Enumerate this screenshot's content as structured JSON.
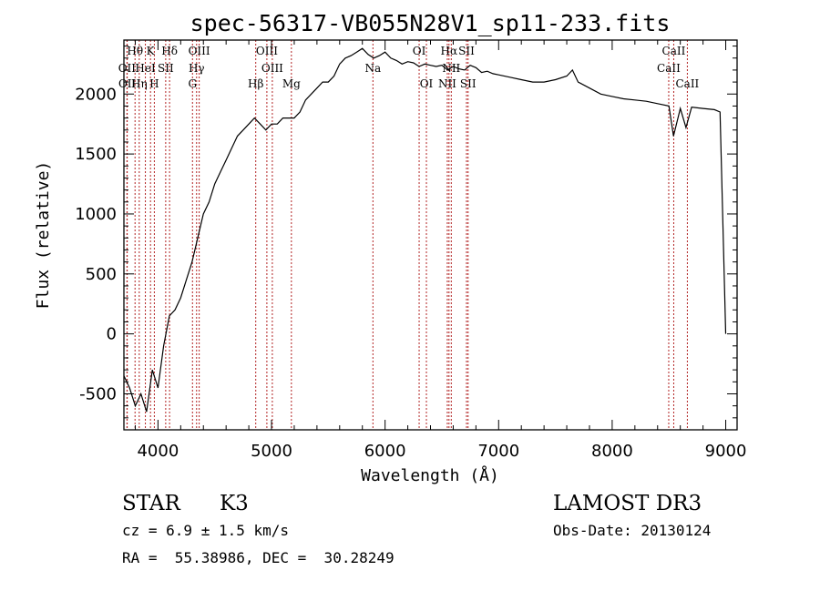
{
  "chart_data": {
    "type": "line",
    "title": "spec-56317-VB055N28V1_sp11-233.fits",
    "xlabel": "Wavelength (Å)",
    "ylabel": "Flux (relative)",
    "xlim": [
      3700,
      9100
    ],
    "ylim": [
      -800,
      2450
    ],
    "x_ticks": [
      4000,
      5000,
      6000,
      7000,
      8000,
      9000
    ],
    "y_ticks": [
      -500,
      0,
      500,
      1000,
      1500,
      2000
    ],
    "grid": false,
    "series": [
      {
        "x": [
          3700,
          3750,
          3800,
          3850,
          3900,
          3950,
          4000,
          4050,
          4100,
          4150,
          4200,
          4250,
          4300,
          4350,
          4400,
          4450,
          4500,
          4550,
          4600,
          4650,
          4700,
          4750,
          4800,
          4850,
          4900,
          4950,
          5000,
          5050,
          5100,
          5150,
          5200,
          5250,
          5300,
          5350,
          5400,
          5450,
          5500,
          5550,
          5600,
          5650,
          5700,
          5750,
          5800,
          5850,
          5900,
          5950,
          6000,
          6050,
          6100,
          6150,
          6200,
          6250,
          6300,
          6350,
          6400,
          6450,
          6500,
          6550,
          6600,
          6650,
          6700,
          6750,
          6800,
          6850,
          6900,
          6950,
          7000,
          7100,
          7200,
          7300,
          7400,
          7500,
          7600,
          7650,
          7700,
          7800,
          7900,
          8000,
          8100,
          8200,
          8300,
          8400,
          8500,
          8540,
          8600,
          8650,
          8700,
          8800,
          8900,
          8950,
          9000
        ],
        "y": [
          -350,
          -450,
          -600,
          -500,
          -650,
          -300,
          -450,
          -100,
          150,
          200,
          300,
          450,
          600,
          800,
          1000,
          1100,
          1250,
          1350,
          1450,
          1550,
          1650,
          1700,
          1750,
          1800,
          1750,
          1700,
          1750,
          1750,
          1800,
          1800,
          1800,
          1850,
          1950,
          2000,
          2050,
          2100,
          2100,
          2150,
          2250,
          2300,
          2320,
          2350,
          2380,
          2330,
          2300,
          2320,
          2350,
          2300,
          2280,
          2250,
          2270,
          2260,
          2230,
          2250,
          2240,
          2230,
          2240,
          2200,
          2230,
          2210,
          2200,
          2240,
          2220,
          2180,
          2190,
          2170,
          2160,
          2140,
          2120,
          2100,
          2100,
          2120,
          2150,
          2200,
          2100,
          2050,
          2000,
          1980,
          1960,
          1950,
          1940,
          1920,
          1900,
          1650,
          1880,
          1720,
          1890,
          1880,
          1870,
          1850,
          0
        ]
      }
    ],
    "lines": [
      {
        "label": "Hθ",
        "wl": 3798,
        "row": 0
      },
      {
        "label": "OII",
        "wl": 3727,
        "row": 1
      },
      {
        "label": "OII",
        "wl": 3729,
        "row": 2
      },
      {
        "label": "Hη",
        "wl": 3835,
        "row": 2
      },
      {
        "label": "K",
        "wl": 3934,
        "row": 0
      },
      {
        "label": "HeI",
        "wl": 3889,
        "row": 1
      },
      {
        "label": "SII",
        "wl": 4068,
        "row": 1
      },
      {
        "label": "H",
        "wl": 3968,
        "row": 2
      },
      {
        "label": "Hδ",
        "wl": 4102,
        "row": 0
      },
      {
        "label": "OIII",
        "wl": 4363,
        "row": 0
      },
      {
        "label": "Hγ",
        "wl": 4340,
        "row": 1
      },
      {
        "label": "G",
        "wl": 4304,
        "row": 2
      },
      {
        "label": "OIII",
        "wl": 4959,
        "row": 0
      },
      {
        "label": "OIII",
        "wl": 5007,
        "row": 1
      },
      {
        "label": "Hβ",
        "wl": 4861,
        "row": 2
      },
      {
        "label": "Mg",
        "wl": 5175,
        "row": 2
      },
      {
        "label": "Na",
        "wl": 5893,
        "row": 1
      },
      {
        "label": "OI",
        "wl": 6300,
        "row": 0
      },
      {
        "label": "OI",
        "wl": 6364,
        "row": 2
      },
      {
        "label": "Hα",
        "wl": 6563,
        "row": 0
      },
      {
        "label": "SII",
        "wl": 6717,
        "row": 0
      },
      {
        "label": "NII",
        "wl": 6583,
        "row": 1
      },
      {
        "label": "NII",
        "wl": 6548,
        "row": 2
      },
      {
        "label": "SII",
        "wl": 6731,
        "row": 2
      },
      {
        "label": "CaII",
        "wl": 8542,
        "row": 0
      },
      {
        "label": "CaII",
        "wl": 8498,
        "row": 1
      },
      {
        "label": "CaII",
        "wl": 8662,
        "row": 2
      }
    ],
    "info": {
      "class_label": "STAR",
      "subclass": "K3",
      "survey": "LAMOST DR3",
      "cz": "cz = 6.9 ± 1.5 km/s",
      "obs_date": "Obs-Date: 20130124",
      "radec": "RA =  55.38986, DEC =  30.28249"
    },
    "colors": {
      "line_markers": "#b22222",
      "spectrum": "#000000"
    }
  }
}
